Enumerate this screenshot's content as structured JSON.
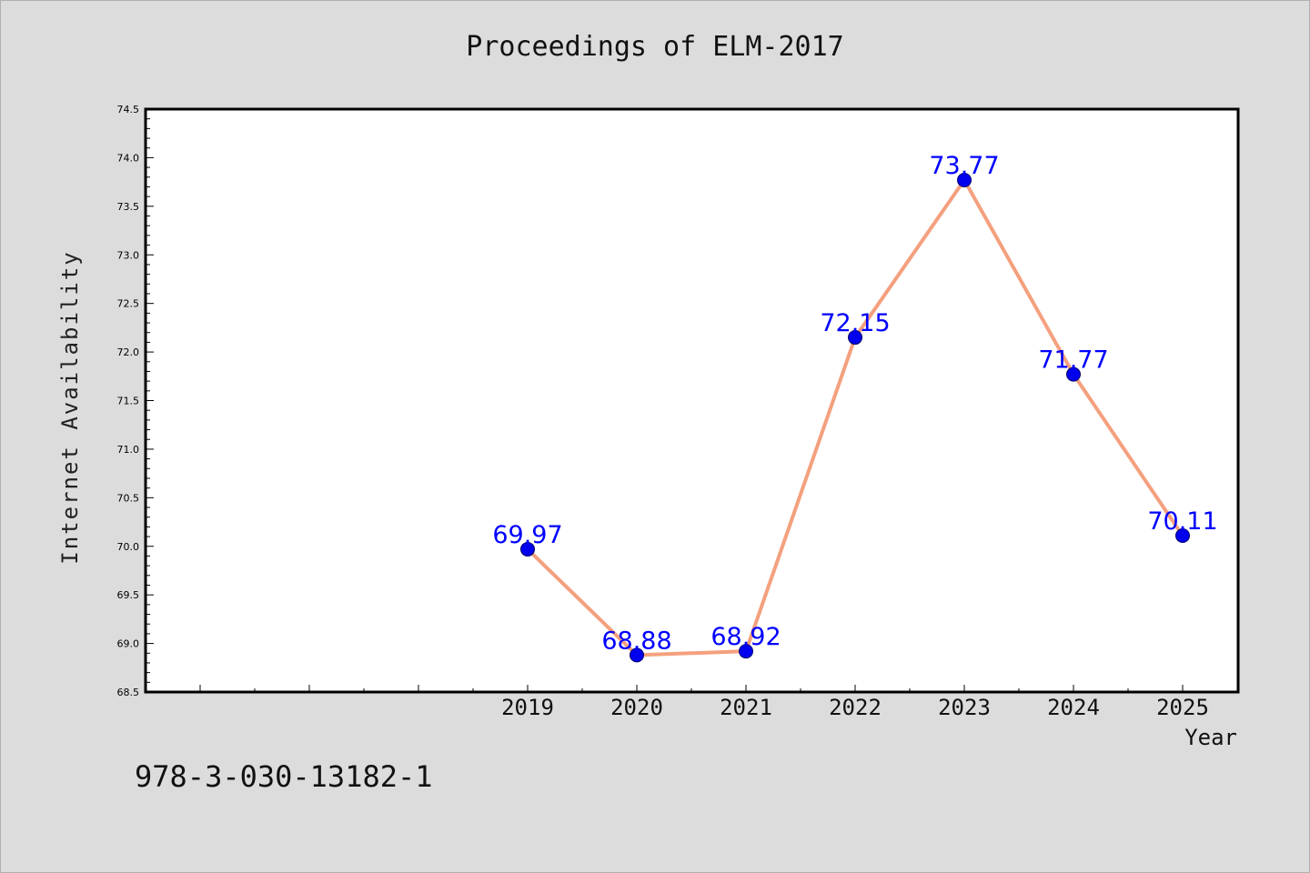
{
  "title": "Proceedings of ELM-2017",
  "footer": "978-3-030-13182-1",
  "colors": {
    "background": "#dcdcdc",
    "plot_background": "#ffffff",
    "line": "#f4a07e",
    "marker": "#0000ee",
    "data_label": "#0000ff"
  },
  "chart_data": {
    "type": "line",
    "title": "Proceedings of ELM-2017",
    "xlabel": "Year",
    "ylabel": "Internet Availability",
    "x_tick_labels": [
      "",
      "",
      "",
      "2019",
      "2020",
      "2021",
      "2022",
      "2023",
      "2024",
      "2025"
    ],
    "categories": [
      "2019",
      "2020",
      "2021",
      "2022",
      "2023",
      "2024",
      "2025"
    ],
    "series": [
      {
        "values": [
          69.97,
          68.88,
          68.92,
          72.15,
          73.77,
          71.77,
          70.11
        ]
      }
    ],
    "data_labels": [
      "69.97",
      "68.88",
      "68.92",
      "72.15",
      "73.77",
      "71.77",
      "70.11"
    ],
    "ylim": [
      68.5,
      74.5
    ],
    "y_ticks": [
      "68.5",
      "69.0",
      "69.5",
      "70.0",
      "70.5",
      "71.0",
      "71.5",
      "72.0",
      "72.5",
      "73.0",
      "73.5",
      "74.0",
      "74.5"
    ],
    "grid": false,
    "legend": "none"
  }
}
